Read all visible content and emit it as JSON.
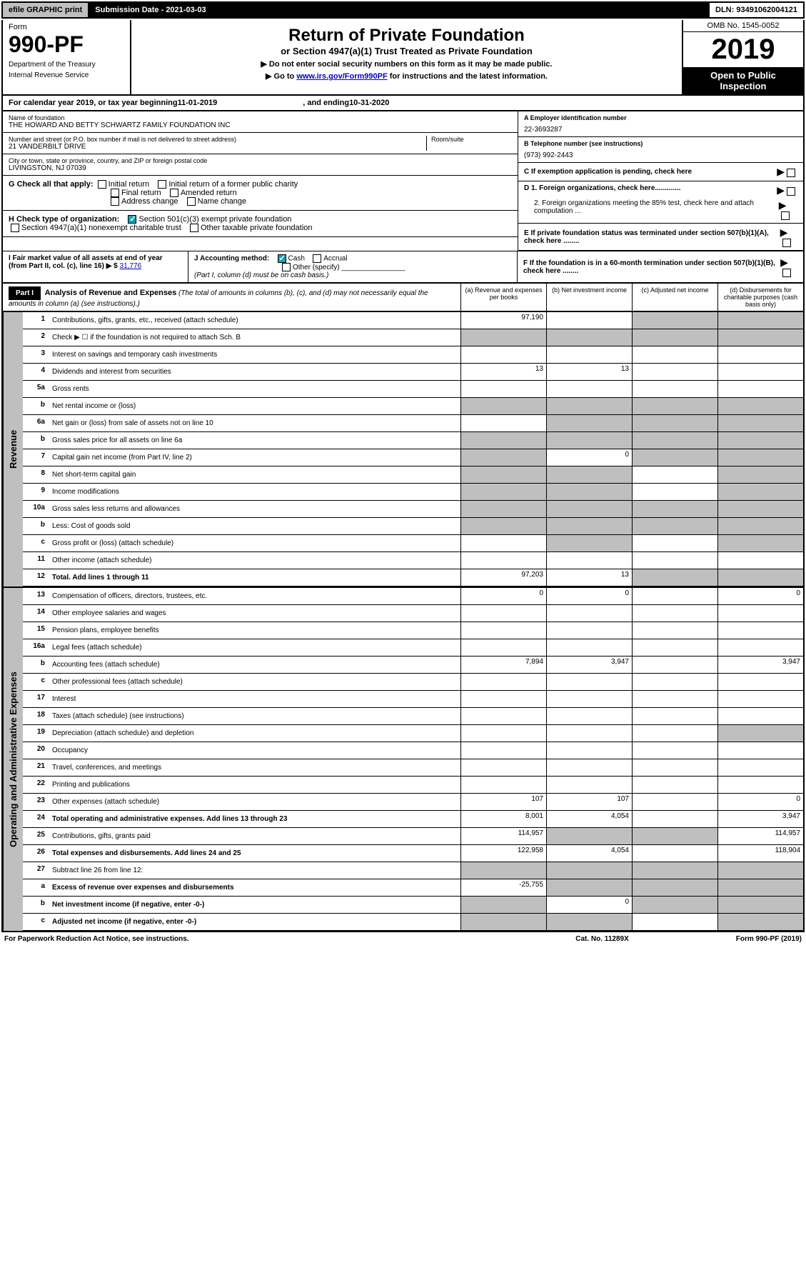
{
  "topbar": {
    "efile": "efile GRAPHIC print",
    "submission": "Submission Date - 2021-03-03",
    "dln": "DLN: 93491062004121"
  },
  "header": {
    "form_label": "Form",
    "form_number": "990-PF",
    "dept1": "Department of the Treasury",
    "dept2": "Internal Revenue Service",
    "title": "Return of Private Foundation",
    "subtitle": "or Section 4947(a)(1) Trust Treated as Private Foundation",
    "instruct1": "▶ Do not enter social security numbers on this form as it may be made public.",
    "instruct2": "▶ Go to ",
    "instruct2_link": "www.irs.gov/Form990PF",
    "instruct2_suffix": " for instructions and the latest information.",
    "omb": "OMB No. 1545-0052",
    "year": "2019",
    "open_public": "Open to Public Inspection"
  },
  "calyear": {
    "prefix": "For calendar year 2019, or tax year beginning ",
    "begin": "11-01-2019",
    "mid": ", and ending ",
    "end": "10-31-2020"
  },
  "info": {
    "name_label": "Name of foundation",
    "name": "THE HOWARD AND BETTY SCHWARTZ FAMILY FOUNDATION INC",
    "addr_label": "Number and street (or P.O. box number if mail is not delivered to street address)",
    "addr": "21 VANDERBILT DRIVE",
    "room_label": "Room/suite",
    "city_label": "City or town, state or province, country, and ZIP or foreign postal code",
    "city": "LIVINGSTON, NJ  07039",
    "ein_label": "A Employer identification number",
    "ein": "22-3693287",
    "tel_label": "B Telephone number (see instructions)",
    "tel": "(973) 992-2443",
    "c_label": "C If exemption application is pending, check here",
    "d1": "D 1. Foreign organizations, check here.............",
    "d2": "2. Foreign organizations meeting the 85% test, check here and attach computation ...",
    "e_label": "E If private foundation status was terminated under section 507(b)(1)(A), check here ........",
    "f_label": "F If the foundation is in a 60-month termination under section 507(b)(1)(B), check here ........"
  },
  "g": {
    "label": "G Check all that apply:",
    "initial": "Initial return",
    "initial_former": "Initial return of a former public charity",
    "final": "Final return",
    "amended": "Amended return",
    "addr_change": "Address change",
    "name_change": "Name change"
  },
  "h": {
    "label": "H Check type of organization:",
    "sec501": "Section 501(c)(3) exempt private foundation",
    "sec4947": "Section 4947(a)(1) nonexempt charitable trust",
    "other_tax": "Other taxable private foundation"
  },
  "i": {
    "label": "I Fair market value of all assets at end of year (from Part II, col. (c), line 16) ▶ $",
    "value": "31,776"
  },
  "j": {
    "label": "J Accounting method:",
    "cash": "Cash",
    "accrual": "Accrual",
    "other": "Other (specify)",
    "note": "(Part I, column (d) must be on cash basis.)"
  },
  "part1": {
    "label": "Part I",
    "title": "Analysis of Revenue and Expenses",
    "title_note": "(The total of amounts in columns (b), (c), and (d) may not necessarily equal the amounts in column (a) (see instructions).)",
    "col_a": "(a)  Revenue and expenses per books",
    "col_b": "(b)  Net investment income",
    "col_c": "(c)  Adjusted net income",
    "col_d": "(d)  Disbursements for charitable purposes (cash basis only)"
  },
  "side": {
    "revenue": "Revenue",
    "expenses": "Operating and Administrative Expenses"
  },
  "rows": {
    "r1": {
      "n": "1",
      "d": "Contributions, gifts, grants, etc., received (attach schedule)",
      "a": "97,190"
    },
    "r2": {
      "n": "2",
      "d": "Check ▶ ☐ if the foundation is not required to attach Sch. B"
    },
    "r3": {
      "n": "3",
      "d": "Interest on savings and temporary cash investments"
    },
    "r4": {
      "n": "4",
      "d": "Dividends and interest from securities",
      "a": "13",
      "b": "13"
    },
    "r5a": {
      "n": "5a",
      "d": "Gross rents"
    },
    "r5b": {
      "n": "b",
      "d": "Net rental income or (loss)"
    },
    "r6a": {
      "n": "6a",
      "d": "Net gain or (loss) from sale of assets not on line 10"
    },
    "r6b": {
      "n": "b",
      "d": "Gross sales price for all assets on line 6a"
    },
    "r7": {
      "n": "7",
      "d": "Capital gain net income (from Part IV, line 2)",
      "b": "0"
    },
    "r8": {
      "n": "8",
      "d": "Net short-term capital gain"
    },
    "r9": {
      "n": "9",
      "d": "Income modifications"
    },
    "r10a": {
      "n": "10a",
      "d": "Gross sales less returns and allowances"
    },
    "r10b": {
      "n": "b",
      "d": "Less: Cost of goods sold"
    },
    "r10c": {
      "n": "c",
      "d": "Gross profit or (loss) (attach schedule)"
    },
    "r11": {
      "n": "11",
      "d": "Other income (attach schedule)"
    },
    "r12": {
      "n": "12",
      "d": "Total. Add lines 1 through 11",
      "a": "97,203",
      "b": "13"
    },
    "r13": {
      "n": "13",
      "d": "Compensation of officers, directors, trustees, etc.",
      "a": "0",
      "b": "0",
      "dd": "0"
    },
    "r14": {
      "n": "14",
      "d": "Other employee salaries and wages"
    },
    "r15": {
      "n": "15",
      "d": "Pension plans, employee benefits"
    },
    "r16a": {
      "n": "16a",
      "d": "Legal fees (attach schedule)"
    },
    "r16b": {
      "n": "b",
      "d": "Accounting fees (attach schedule)",
      "a": "7,894",
      "b": "3,947",
      "dd": "3,947"
    },
    "r16c": {
      "n": "c",
      "d": "Other professional fees (attach schedule)"
    },
    "r17": {
      "n": "17",
      "d": "Interest"
    },
    "r18": {
      "n": "18",
      "d": "Taxes (attach schedule) (see instructions)"
    },
    "r19": {
      "n": "19",
      "d": "Depreciation (attach schedule) and depletion"
    },
    "r20": {
      "n": "20",
      "d": "Occupancy"
    },
    "r21": {
      "n": "21",
      "d": "Travel, conferences, and meetings"
    },
    "r22": {
      "n": "22",
      "d": "Printing and publications"
    },
    "r23": {
      "n": "23",
      "d": "Other expenses (attach schedule)",
      "a": "107",
      "b": "107",
      "dd": "0"
    },
    "r24": {
      "n": "24",
      "d": "Total operating and administrative expenses. Add lines 13 through 23",
      "a": "8,001",
      "b": "4,054",
      "dd": "3,947"
    },
    "r25": {
      "n": "25",
      "d": "Contributions, gifts, grants paid",
      "a": "114,957",
      "dd": "114,957"
    },
    "r26": {
      "n": "26",
      "d": "Total expenses and disbursements. Add lines 24 and 25",
      "a": "122,958",
      "b": "4,054",
      "dd": "118,904"
    },
    "r27": {
      "n": "27",
      "d": "Subtract line 26 from line 12:"
    },
    "r27a": {
      "n": "a",
      "d": "Excess of revenue over expenses and disbursements",
      "a": "-25,755"
    },
    "r27b": {
      "n": "b",
      "d": "Net investment income (if negative, enter -0-)",
      "b": "0"
    },
    "r27c": {
      "n": "c",
      "d": "Adjusted net income (if negative, enter -0-)"
    }
  },
  "footer": {
    "paperwork": "For Paperwork Reduction Act Notice, see instructions.",
    "cat": "Cat. No. 11289X",
    "form": "Form 990-PF (2019)"
  }
}
